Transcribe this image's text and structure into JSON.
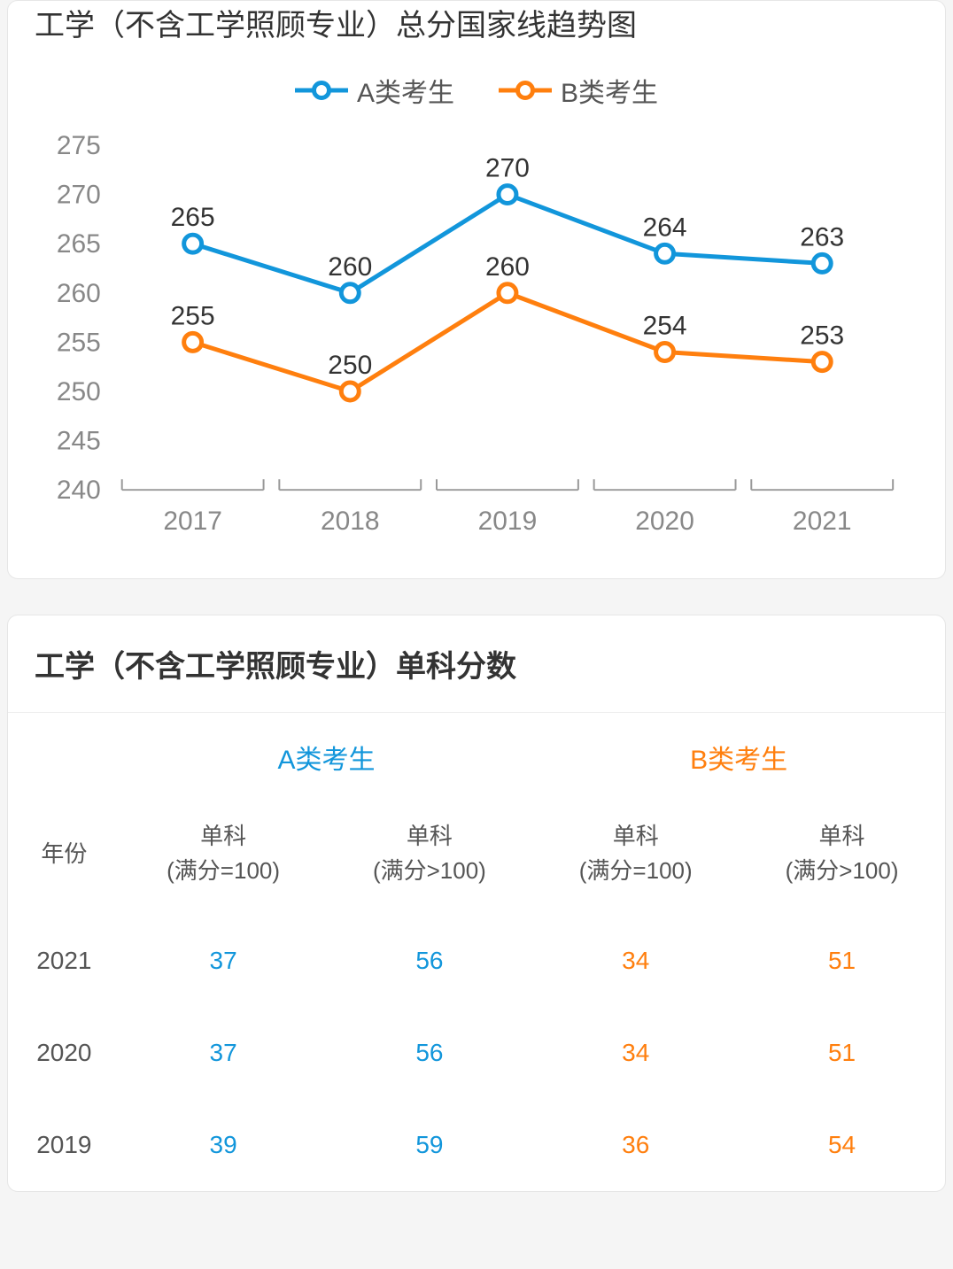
{
  "chart_card": {
    "title": "工学（不含工学照顾专业）总分国家线趋势图",
    "chart": {
      "type": "line",
      "background_color": "#ffffff",
      "categories": [
        "2017",
        "2018",
        "2019",
        "2020",
        "2021"
      ],
      "ylim": [
        240,
        275
      ],
      "ytick_step": 5,
      "yticks": [
        240,
        245,
        250,
        255,
        260,
        265,
        270,
        275
      ],
      "axis_color": "#999999",
      "tick_font_color": "#888888",
      "tick_fontsize": 30,
      "data_label_color": "#333333",
      "data_label_fontsize": 30,
      "line_width": 5,
      "marker_radius": 10,
      "marker_stroke_width": 5,
      "marker_fill": "#ffffff",
      "series": [
        {
          "name": "A类考生",
          "color": "#1296db",
          "values": [
            265,
            260,
            270,
            264,
            263
          ]
        },
        {
          "name": "B类考生",
          "color": "#ff7f0e",
          "values": [
            255,
            250,
            260,
            254,
            253
          ]
        }
      ]
    }
  },
  "table_card": {
    "title": "工学（不含工学照顾专业）单科分数",
    "group_a_label": "A类考生",
    "group_b_label": "B类考生",
    "color_a": "#1296db",
    "color_b": "#ff7f0e",
    "year_header": "年份",
    "sub_a1": "单科\n(满分=100)",
    "sub_a2": "单科\n(满分>100)",
    "sub_b1": "单科\n(满分=100)",
    "sub_b2": "单科\n(满分>100)",
    "rows": [
      {
        "year": "2021",
        "a1": "37",
        "a2": "56",
        "b1": "34",
        "b2": "51"
      },
      {
        "year": "2020",
        "a1": "37",
        "a2": "56",
        "b1": "34",
        "b2": "51"
      },
      {
        "year": "2019",
        "a1": "39",
        "a2": "59",
        "b1": "36",
        "b2": "54"
      }
    ]
  }
}
